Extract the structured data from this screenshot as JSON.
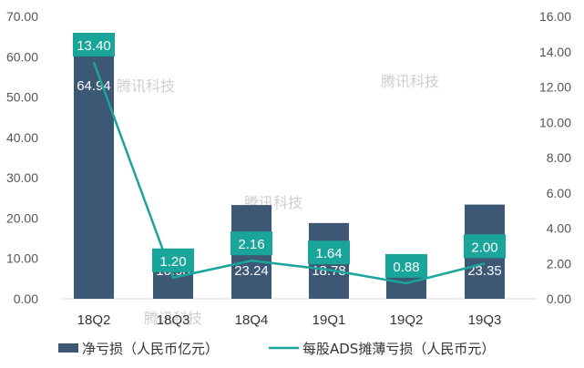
{
  "chart_data": {
    "type": "bar",
    "categories": [
      "18Q2",
      "18Q3",
      "18Q4",
      "19Q1",
      "19Q2",
      "19Q3"
    ],
    "series": [
      {
        "name": "净亏损（人民币亿元）",
        "type": "bar",
        "axis": "left",
        "values": [
          64.94,
          10.98,
          23.24,
          18.78,
          10.03,
          23.35
        ],
        "labels": [
          "64.94",
          "10.98",
          "23.24",
          "18.78",
          "10.03",
          "23.35"
        ]
      },
      {
        "name": "每股ADS摊薄亏损（人民币元）",
        "type": "line",
        "axis": "right",
        "values": [
          13.4,
          1.2,
          2.16,
          1.64,
          0.88,
          2.0
        ],
        "labels": [
          "13.40",
          "1.20",
          "2.16",
          "1.64",
          "0.88",
          "2.00"
        ]
      }
    ],
    "y_left": {
      "ylim": [
        0,
        70
      ],
      "ticks": [
        "0.00",
        "10.00",
        "20.00",
        "30.00",
        "40.00",
        "50.00",
        "60.00",
        "70.00"
      ]
    },
    "y_right": {
      "ylim": [
        0,
        16
      ],
      "ticks": [
        "0.00",
        "2.00",
        "4.00",
        "6.00",
        "8.00",
        "10.00",
        "12.00",
        "14.00",
        "16.00"
      ]
    },
    "grid": false,
    "legend_position": "bottom"
  },
  "watermark": "腾讯科技",
  "colors": {
    "bar": "#3c5875",
    "line": "#1aa59a",
    "label_box": "#1aa59a",
    "axis": "#d9d9d9"
  }
}
